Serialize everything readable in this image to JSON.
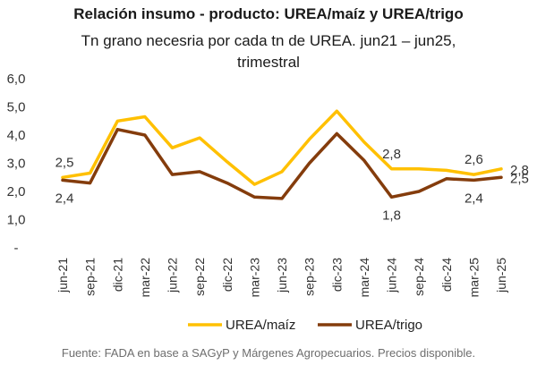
{
  "chart_data": {
    "type": "line",
    "title": "Relación insumo - producto: UREA/maíz y UREA/trigo",
    "subtitle_line1": "Tn grano necesria por cada tn de UREA. jun21 – jun25,",
    "subtitle_line2": "trimestral",
    "ylim": [
      0,
      6
    ],
    "yticks": [
      "-",
      "1,0",
      "2,0",
      "3,0",
      "4,0",
      "5,0",
      "6,0"
    ],
    "categories": [
      "jun-21",
      "sep-21",
      "dic-21",
      "mar-22",
      "jun-22",
      "sep-22",
      "dic-22",
      "mar-23",
      "jun-23",
      "sep-23",
      "dic-23",
      "mar-24",
      "jun-24",
      "sep-24",
      "dic-24",
      "mar-25",
      "jun-25"
    ],
    "series": [
      {
        "name": "UREA/maíz",
        "color": "#FFC000",
        "values": [
          2.5,
          2.65,
          4.5,
          4.65,
          3.55,
          3.9,
          3.05,
          2.25,
          2.7,
          3.85,
          4.85,
          3.75,
          2.8,
          2.8,
          2.75,
          2.6,
          2.8
        ]
      },
      {
        "name": "UREA/trigo",
        "color": "#843C0C",
        "values": [
          2.4,
          2.3,
          4.2,
          4.0,
          2.6,
          2.7,
          2.3,
          1.8,
          1.75,
          3.0,
          4.05,
          3.1,
          1.8,
          2.0,
          2.45,
          2.4,
          2.5
        ]
      }
    ],
    "data_labels": [
      {
        "series": 0,
        "index": 0,
        "text": "2,5",
        "pos": "above"
      },
      {
        "series": 1,
        "index": 0,
        "text": "2,4",
        "pos": "below"
      },
      {
        "series": 0,
        "index": 12,
        "text": "2,8",
        "pos": "above"
      },
      {
        "series": 1,
        "index": 12,
        "text": "1,8",
        "pos": "below"
      },
      {
        "series": 0,
        "index": 15,
        "text": "2,6",
        "pos": "above"
      },
      {
        "series": 1,
        "index": 15,
        "text": "2,4",
        "pos": "below"
      },
      {
        "series": 0,
        "index": 16,
        "text": "2,8",
        "pos": "right"
      },
      {
        "series": 1,
        "index": 16,
        "text": "2,5",
        "pos": "right"
      }
    ],
    "legend": "bottom"
  },
  "footer": "Fuente: FADA en base a SAGyP y Márgenes Agropecuarios. Precios disponible."
}
